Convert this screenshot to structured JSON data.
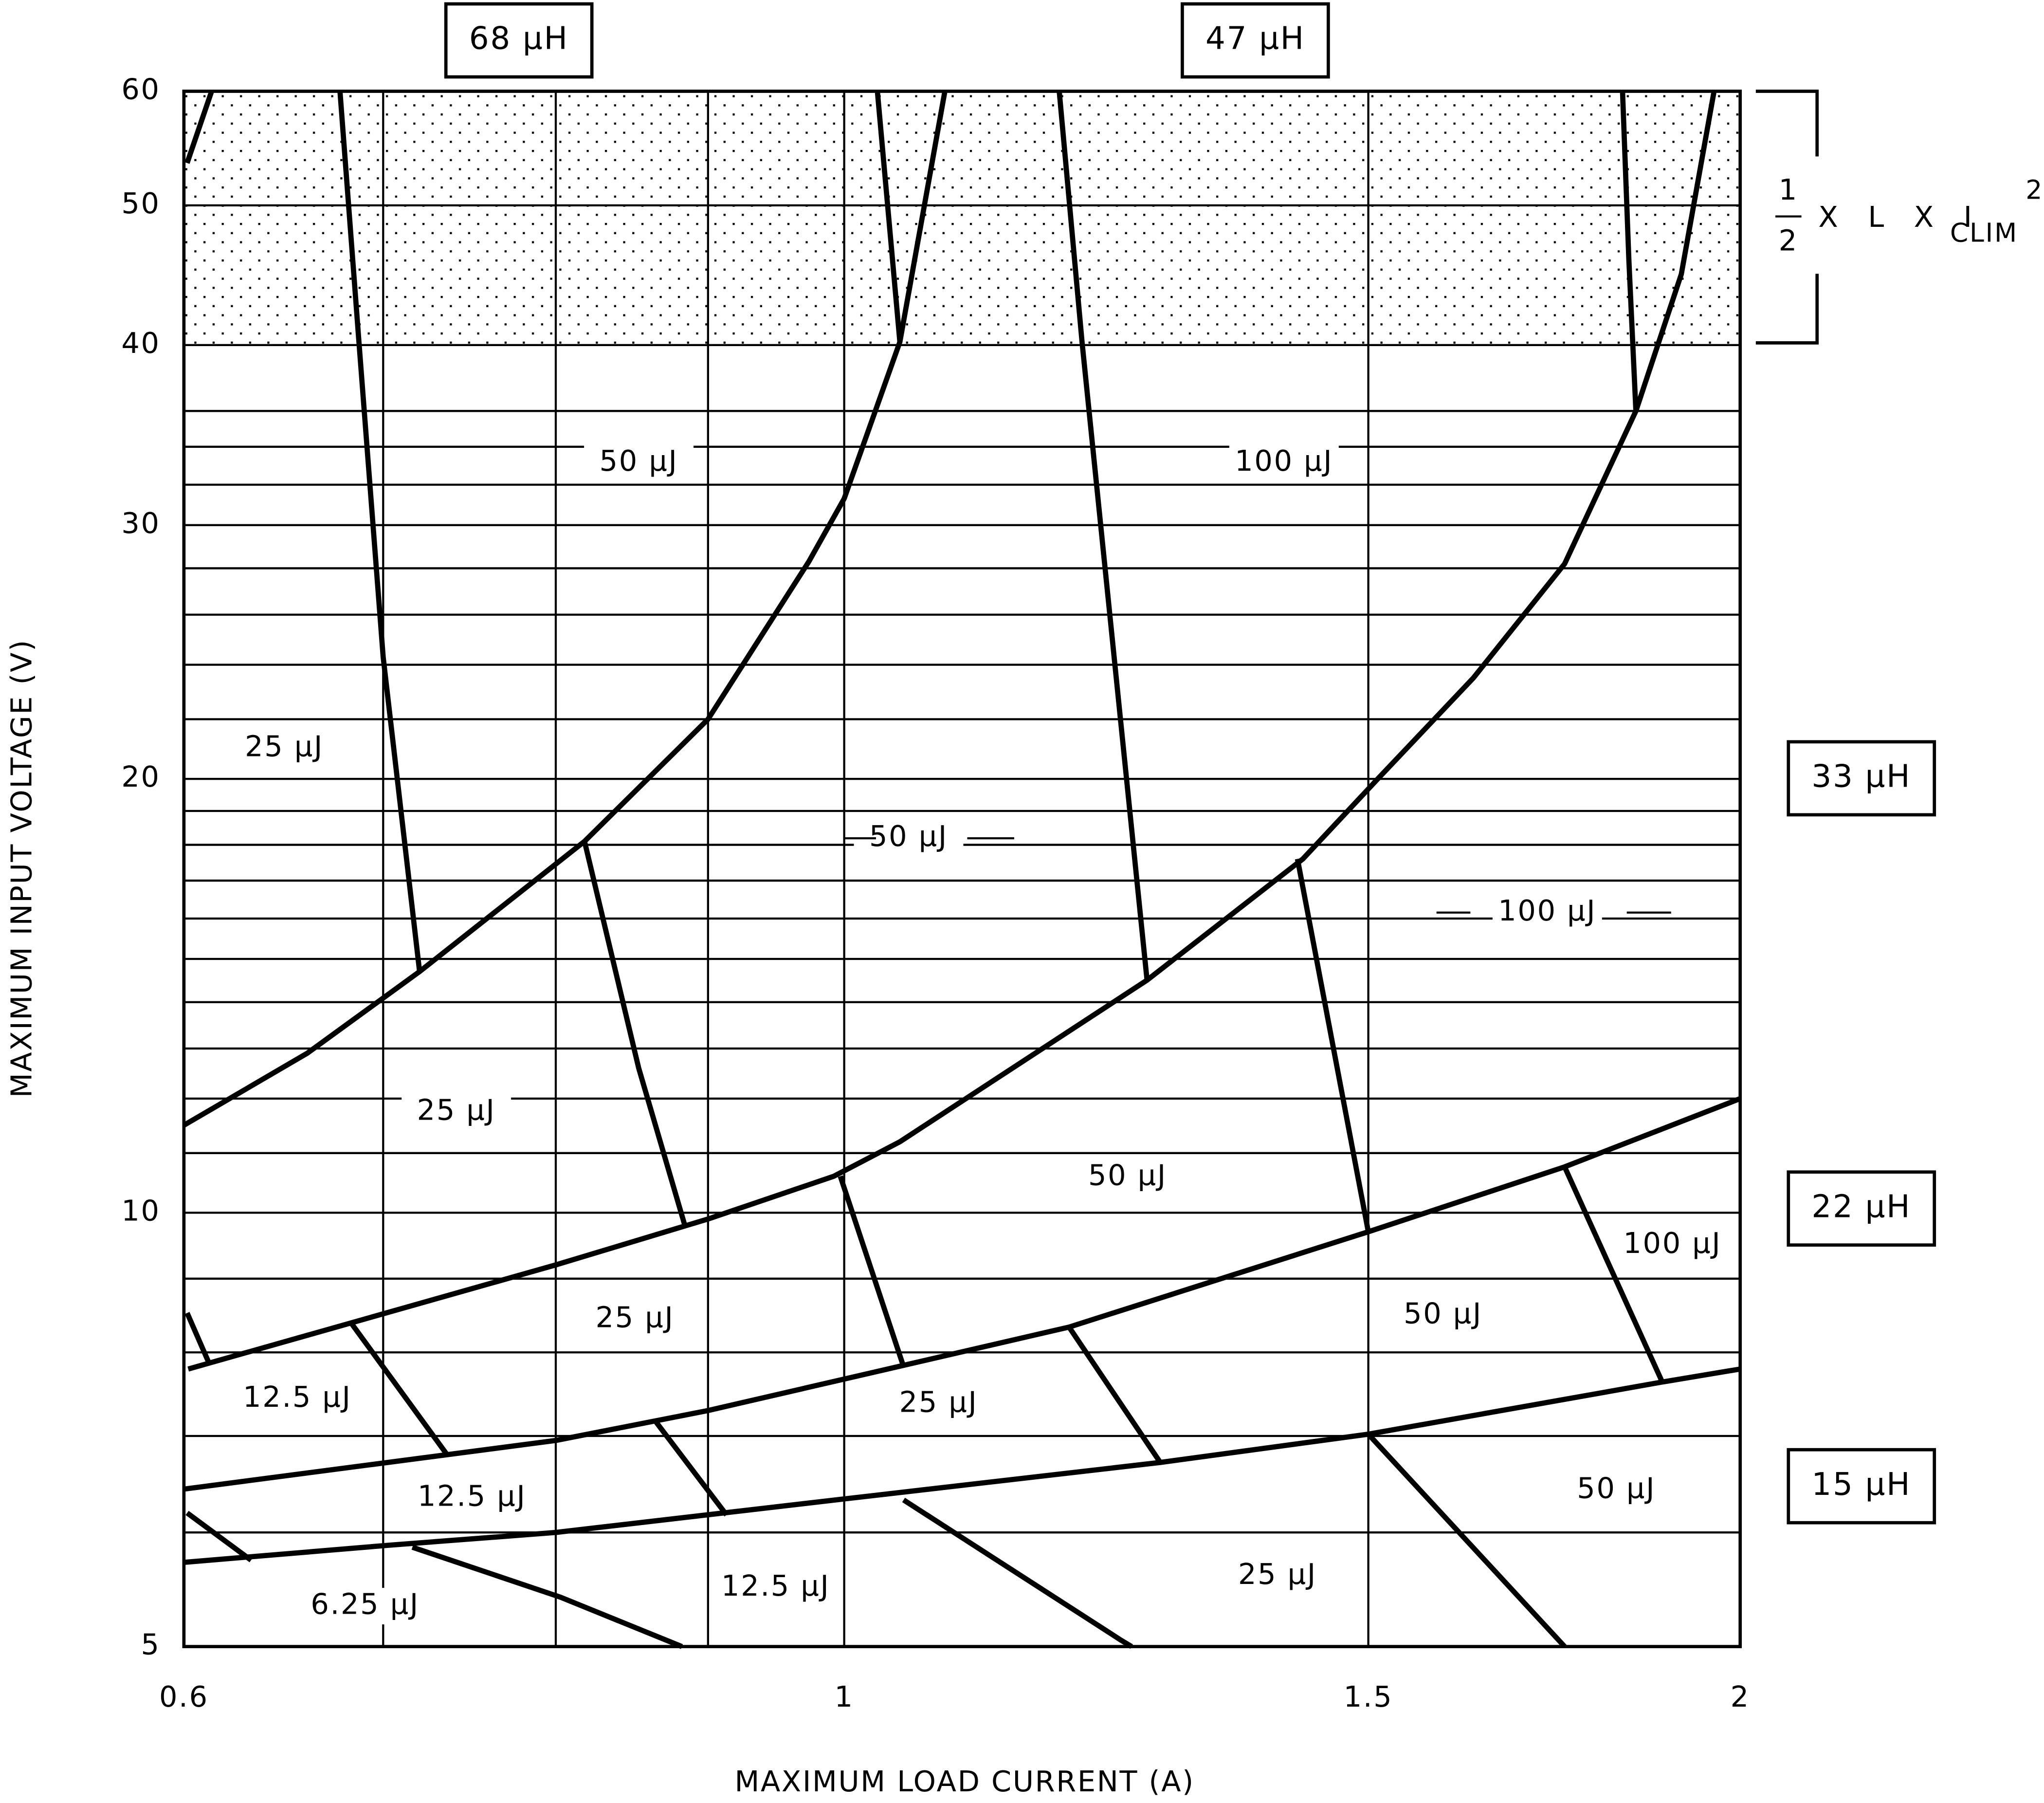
{
  "chart_data": {
    "type": "line",
    "x_label": "MAXIMUM LOAD CURRENT (A)",
    "y_label": "MAXIMUM INPUT VOLTAGE (V)",
    "log_x": true,
    "log_y": true,
    "xlim": [
      0.6,
      2
    ],
    "ylim": [
      5,
      60
    ],
    "xticks": [
      0.6,
      1,
      1.5,
      2
    ],
    "yticks": [
      5,
      10,
      20,
      30,
      40,
      50,
      60
    ],
    "x_grid": [
      0.7,
      0.8,
      0.9
    ],
    "y_grid": [
      6,
      7,
      8,
      9,
      11,
      12,
      13,
      14,
      15,
      16,
      17,
      18,
      19,
      22,
      24,
      26,
      28,
      32,
      34,
      36
    ],
    "grid": true,
    "color": "#000000",
    "shaded_band": [
      40,
      60
    ],
    "lines": [
      {
        "x": [
          0.6,
          0.66,
          0.72,
          0.818,
          0.9,
          0.973,
          1,
          1.044,
          1.081
        ],
        "y": [
          11.5,
          12.9,
          14.7,
          18.1,
          22.0,
          28.3,
          31.3,
          40.2,
          60
        ]
      },
      {
        "x": [
          0.602,
          0.8,
          0.9,
          0.992,
          1.044,
          1.264,
          1.426,
          1.511,
          1.627,
          1.746,
          1.845,
          1.911,
          1.96
        ],
        "y": [
          7.79,
          9.2,
          9.9,
          10.6,
          11.2,
          14.5,
          17.6,
          20.0,
          23.5,
          28.2,
          36.0,
          44.8,
          60
        ]
      },
      {
        "x": [
          0.6,
          0.8,
          0.9,
          1.19,
          1.5,
          1.746,
          2
        ],
        "y": [
          6.43,
          6.95,
          7.29,
          8.33,
          9.7,
          10.76,
          12.0
        ]
      },
      {
        "x": [
          0.6,
          0.704,
          0.8,
          1,
          1.277,
          1.5,
          1.883,
          2
        ],
        "y": [
          5.72,
          5.88,
          6.0,
          6.33,
          6.71,
          7.02,
          7.63,
          7.79
        ]
      },
      {
        "x": [
          0.6015,
          0.613
        ],
        "y": [
          53.5,
          60
        ]
      },
      {
        "x": [
          0.677,
          0.687,
          0.7,
          0.72
        ],
        "y": [
          60,
          40.2,
          24.3,
          14.7
        ]
      },
      {
        "x": [
          1.026,
          1.044
        ],
        "y": [
          60,
          40.2
        ]
      },
      {
        "x": [
          1.181,
          1.202,
          1.264
        ],
        "y": [
          60,
          40.2,
          14.5
        ]
      },
      {
        "x": [
          1.826,
          1.835,
          1.845
        ],
        "y": [
          60,
          45.8,
          36.0
        ]
      },
      {
        "x": [
          0.818,
          0.853,
          0.884
        ],
        "y": [
          18.1,
          12.6,
          9.8
        ]
      },
      {
        "x": [
          1.42,
          1.5
        ],
        "y": [
          17.6,
          9.7
        ]
      },
      {
        "x": [
          0.997,
          1.047
        ],
        "y": [
          10.6,
          7.82
        ]
      },
      {
        "x": [
          1.746,
          1.883
        ],
        "y": [
          10.76,
          7.63
        ]
      },
      {
        "x": [
          0.6015,
          0.612
        ],
        "y": [
          8.52,
          7.85
        ]
      },
      {
        "x": [
          0.683,
          0.736
        ],
        "y": [
          8.38,
          6.78
        ]
      },
      {
        "x": [
          1.19,
          1.277
        ],
        "y": [
          8.33,
          6.71
        ]
      },
      {
        "x": [
          0.864,
          0.913
        ],
        "y": [
          7.17,
          6.17
        ]
      },
      {
        "x": [
          0.6015,
          0.632
        ],
        "y": [
          6.19,
          5.74
        ]
      },
      {
        "x": [
          0.716,
          0.803,
          0.882
        ],
        "y": [
          5.86,
          5.41,
          5.0
        ]
      },
      {
        "x": [
          1.047,
          1.239,
          1.249
        ],
        "y": [
          6.32,
          5.05,
          5.0
        ]
      },
      {
        "x": [
          1.5,
          1.746
        ],
        "y": [
          7.02,
          5.0
        ]
      }
    ],
    "energy_labels": [
      "50 μJ",
      "100 μJ",
      "25 μJ",
      "50 μJ",
      "100 μJ",
      "25 μJ",
      "50 μJ",
      "25 μJ",
      "100 μJ",
      "50 μJ",
      "12.5 μJ",
      "25 μJ",
      "12.5 μJ",
      "50 μJ",
      "6.25 μJ",
      "12.5 μJ",
      "25 μJ"
    ],
    "inductor_labels": [
      "68 μH",
      "47 μH",
      "33 μH",
      "22 μH",
      "15 μH"
    ],
    "formula": {
      "numerator": "1",
      "denominator": "2",
      "text": "X L X I",
      "subscript": "CLIM",
      "superscript": "2"
    }
  }
}
